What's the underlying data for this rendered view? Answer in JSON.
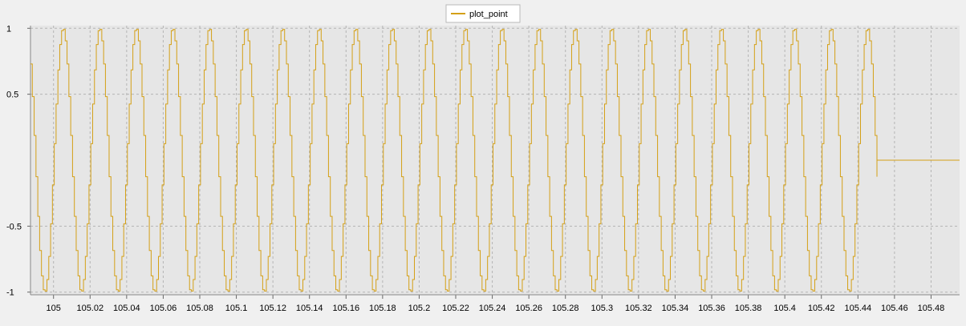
{
  "chart_data": {
    "type": "line",
    "line_style": "step",
    "title": "",
    "xlabel": "",
    "ylabel": "",
    "legend": {
      "position": "top-center",
      "entries": [
        "plot_point"
      ]
    },
    "grid": true,
    "xlim": [
      104.9874,
      105.4956
    ],
    "ylim": [
      -1.02,
      1.02
    ],
    "xticks": [
      "105",
      "105.02",
      "105.04",
      "105.06",
      "105.08",
      "105.1",
      "105.12",
      "105.14",
      "105.16",
      "105.18",
      "105.2",
      "105.22",
      "105.24",
      "105.26",
      "105.28",
      "105.3",
      "105.32",
      "105.34",
      "105.36",
      "105.38",
      "105.4",
      "105.42",
      "105.44",
      "105.46",
      "105.48"
    ],
    "xtick_values": [
      105,
      105.02,
      105.04,
      105.06,
      105.08,
      105.1,
      105.12,
      105.14,
      105.16,
      105.18,
      105.2,
      105.22,
      105.24,
      105.26,
      105.28,
      105.3,
      105.32,
      105.34,
      105.36,
      105.38,
      105.4,
      105.42,
      105.44,
      105.46,
      105.48
    ],
    "yticks": [
      "1",
      "0.5",
      "-0.5",
      "-1"
    ],
    "ytick_values": [
      1,
      0.5,
      -0.5,
      -1
    ],
    "colors": {
      "series": "#d4a017",
      "plot_bg": "#e6e6e6",
      "grid": "#b4b4b4"
    },
    "series": [
      {
        "name": "plot_point",
        "sine": {
          "period": 0.02,
          "x_start": 104.9874,
          "x_step": 0.001,
          "x_end": 105.4504,
          "phase_x": 105.0,
          "amplitude": 1
        },
        "x_after": [
          105.4504,
          105.4956
        ],
        "y_after": [
          0,
          0
        ]
      }
    ]
  }
}
